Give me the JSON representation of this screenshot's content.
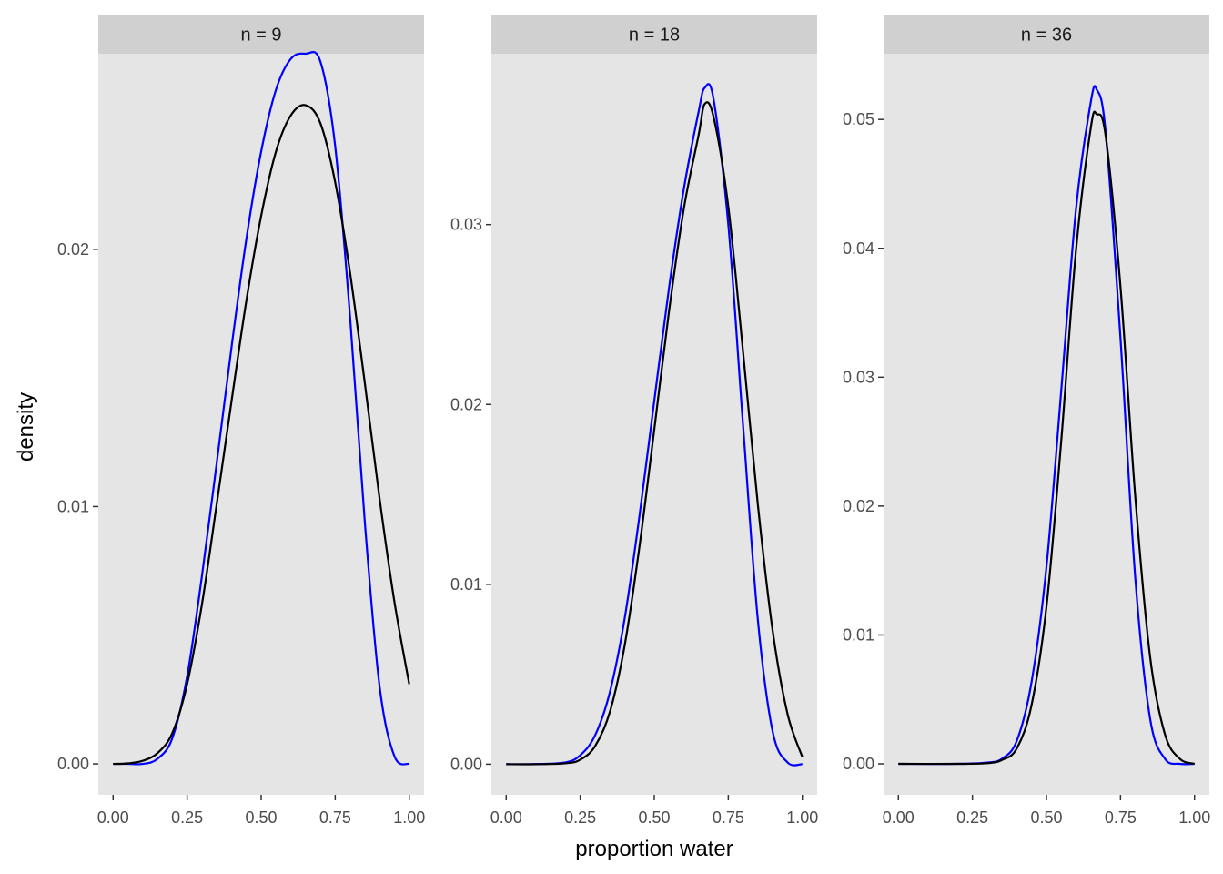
{
  "chart_data": {
    "type": "line",
    "facet_style": "ggplot2-gray",
    "panel_background": "#e5e5e5",
    "strip_background": "#d0d0d0",
    "gridlines": false,
    "xlabel": "proportion water",
    "ylabel": "density",
    "x_ticks": [
      0,
      0.25,
      0.5,
      0.75,
      1
    ],
    "x_tick_labels": [
      "0.00",
      "0.25",
      "0.50",
      "0.75",
      "1.00"
    ],
    "xlim": [
      -0.05,
      1.05
    ],
    "series_colors": {
      "blue_curve": "#0000ff",
      "black_curve": "#000000"
    },
    "panels": [
      {
        "strip": "n = 9",
        "n": 9,
        "ylim": [
          -0.0012,
          0.0276
        ],
        "y_ticks": [
          0,
          0.01,
          0.02
        ],
        "y_tick_labels": [
          "0.00",
          "0.01",
          "0.02"
        ],
        "series": [
          {
            "color": "#0000ff",
            "x": [
              0,
              0.05,
              0.1,
              0.15,
              0.2,
              0.25,
              0.3,
              0.35,
              0.4,
              0.45,
              0.5,
              0.55,
              0.6,
              0.65,
              0.7,
              0.75,
              0.8,
              0.85,
              0.9,
              0.95,
              1.0
            ],
            "y": [
              0,
              0,
              0.0,
              0.0002,
              0.001,
              0.0034,
              0.0073,
              0.0117,
              0.0162,
              0.0204,
              0.0238,
              0.0262,
              0.0274,
              0.0276,
              0.0273,
              0.024,
              0.0174,
              0.0094,
              0.003,
              0.0003,
              0
            ]
          },
          {
            "color": "#000000",
            "x": [
              0,
              0.05,
              0.1,
              0.15,
              0.2,
              0.25,
              0.3,
              0.35,
              0.4,
              0.45,
              0.5,
              0.55,
              0.6,
              0.65,
              0.7,
              0.75,
              0.8,
              0.85,
              0.9,
              0.95,
              1.0
            ],
            "y": [
              0,
              2e-05,
              0.00012,
              0.00042,
              0.0012,
              0.0031,
              0.0062,
              0.0101,
              0.0141,
              0.018,
              0.0213,
              0.0238,
              0.0252,
              0.0256,
              0.0249,
              0.0226,
              0.0191,
              0.0148,
              0.0103,
              0.0063,
              0.0031
            ]
          }
        ]
      },
      {
        "strip": "n = 18",
        "n": 18,
        "ylim": [
          -0.0017,
          0.0395
        ],
        "y_ticks": [
          0,
          0.01,
          0.02,
          0.03
        ],
        "y_tick_labels": [
          "0.00",
          "0.01",
          "0.02",
          "0.03"
        ],
        "series": [
          {
            "color": "#0000ff",
            "x": [
              0,
              0.1,
              0.2,
              0.25,
              0.3,
              0.35,
              0.4,
              0.45,
              0.5,
              0.55,
              0.6,
              0.65,
              0.67,
              0.7,
              0.75,
              0.8,
              0.85,
              0.9,
              0.95,
              1.0
            ],
            "y": [
              0,
              1e-05,
              0.0001,
              0.0005,
              0.0016,
              0.004,
              0.0081,
              0.0138,
              0.0202,
              0.0265,
              0.032,
              0.0363,
              0.0376,
              0.037,
              0.03,
              0.0188,
              0.008,
              0.0018,
              0.0001,
              0
            ]
          },
          {
            "color": "#000000",
            "x": [
              0,
              0.1,
              0.2,
              0.25,
              0.3,
              0.35,
              0.4,
              0.45,
              0.5,
              0.55,
              0.6,
              0.65,
              0.67,
              0.7,
              0.75,
              0.8,
              0.85,
              0.9,
              0.95,
              1.0
            ],
            "y": [
              0,
              0,
              5e-05,
              0.00025,
              0.001,
              0.0029,
              0.0066,
              0.0121,
              0.0186,
              0.0252,
              0.0309,
              0.035,
              0.0367,
              0.036,
              0.031,
              0.0229,
              0.0144,
              0.0074,
              0.0028,
              0.0004
            ]
          }
        ]
      },
      {
        "strip": "n = 36",
        "n": 36,
        "ylim": [
          -0.0024,
          0.0551
        ],
        "y_ticks": [
          0,
          0.01,
          0.02,
          0.03,
          0.04,
          0.05
        ],
        "y_tick_labels": [
          "0.00",
          "0.01",
          "0.02",
          "0.03",
          "0.04",
          "0.05"
        ],
        "series": [
          {
            "color": "#0000ff",
            "x": [
              0,
              0.2,
              0.3,
              0.35,
              0.4,
              0.45,
              0.5,
              0.55,
              0.6,
              0.65,
              0.67,
              0.7,
              0.75,
              0.8,
              0.85,
              0.9,
              0.95,
              1.0
            ],
            "y": [
              0,
              0,
              0.0001,
              0.0004,
              0.0018,
              0.0064,
              0.0153,
              0.029,
              0.0431,
              0.0514,
              0.0523,
              0.049,
              0.033,
              0.0144,
              0.0035,
              0.0004,
              0,
              0
            ]
          },
          {
            "color": "#000000",
            "x": [
              0,
              0.2,
              0.3,
              0.35,
              0.4,
              0.45,
              0.5,
              0.55,
              0.6,
              0.65,
              0.67,
              0.7,
              0.75,
              0.8,
              0.85,
              0.9,
              0.95,
              1.0
            ],
            "y": [
              0,
              0,
              5e-05,
              0.0003,
              0.0012,
              0.0046,
              0.0122,
              0.0251,
              0.0399,
              0.0494,
              0.0504,
              0.0487,
              0.037,
              0.0207,
              0.0083,
              0.0023,
              0.0004,
              0
            ]
          }
        ]
      }
    ]
  }
}
